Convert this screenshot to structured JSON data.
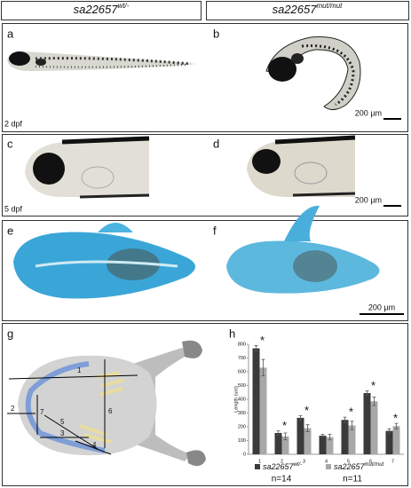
{
  "header": [
    {
      "base": "sa22657",
      "sup": "wt/-"
    },
    {
      "base": "sa22657",
      "sup": "mut/mut"
    }
  ],
  "panels": {
    "a": {
      "letter": "a",
      "stage": "2 dpf"
    },
    "b": {
      "letter": "b",
      "scale": "200 µm"
    },
    "c": {
      "letter": "c",
      "stage": "5 dpf"
    },
    "d": {
      "letter": "d",
      "scale": "200 µm"
    },
    "e": {
      "letter": "e"
    },
    "f": {
      "letter": "f",
      "scale": "200 µm"
    },
    "g": {
      "letter": "g",
      "labels": [
        "1",
        "2",
        "3",
        "4",
        "5",
        "6",
        "7"
      ]
    }
  },
  "chart_data": {
    "type": "bar",
    "letter": "h",
    "y_label": "Length (um)",
    "categories": [
      "1",
      "2",
      "3",
      "4",
      "5",
      "6",
      "7"
    ],
    "series": [
      {
        "name": "sa22657",
        "name_sup": "wt/-",
        "n": "n=14",
        "color": "#3a3a3a",
        "values": [
          770,
          155,
          265,
          135,
          250,
          445,
          170
        ],
        "errors": [
          20,
          15,
          15,
          10,
          20,
          15,
          15
        ]
      },
      {
        "name": "sa22657",
        "name_sup": "mut/mut",
        "n": "n=11",
        "color": "#a8a8a8",
        "values": [
          630,
          130,
          190,
          125,
          210,
          385,
          205
        ],
        "errors": [
          60,
          25,
          25,
          20,
          30,
          30,
          20
        ]
      }
    ],
    "significance": [
      "*",
      "*",
      "*",
      null,
      "*",
      "*",
      "*"
    ],
    "ylim": [
      0,
      800
    ],
    "yticks": [
      0,
      100,
      200,
      300,
      400,
      500,
      600,
      700,
      800
    ],
    "grid": false
  }
}
